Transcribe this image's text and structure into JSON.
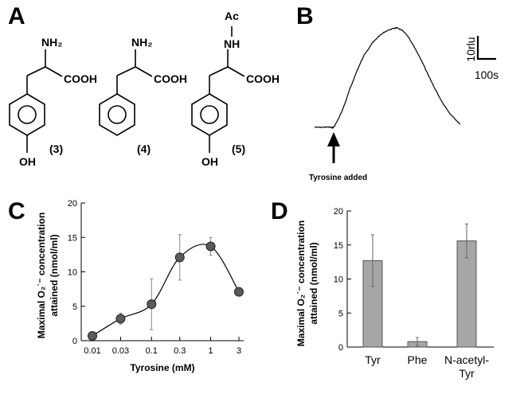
{
  "panels": [
    "A",
    "B",
    "C",
    "D"
  ],
  "panel_a": {
    "structures": [
      {
        "label": "(3)",
        "amine": "NH₂",
        "acid": "COOH",
        "ring_sub": "OH"
      },
      {
        "label": "(4)",
        "amine": "NH₂",
        "acid": "COOH",
        "ring_sub": ""
      },
      {
        "label": "(5)",
        "amine": "NH",
        "acyl": "Ac",
        "acid": "COOH",
        "ring_sub": "OH"
      }
    ]
  },
  "panel_b": {
    "scale_y": "10rlu",
    "scale_x": "100s",
    "annotation": "Tyrosine added",
    "trace": [
      [
        0,
        0.0
      ],
      [
        20,
        0.05
      ],
      [
        40,
        0.1
      ],
      [
        50,
        -0.1
      ],
      [
        55,
        0.2
      ],
      [
        70,
        4
      ],
      [
        85,
        9
      ],
      [
        100,
        15
      ],
      [
        120,
        22
      ],
      [
        140,
        28
      ],
      [
        160,
        32
      ],
      [
        180,
        35
      ],
      [
        200,
        37
      ],
      [
        220,
        38
      ],
      [
        230,
        38.3
      ],
      [
        245,
        37.5
      ],
      [
        260,
        35.5
      ],
      [
        280,
        31
      ],
      [
        300,
        26
      ],
      [
        320,
        20
      ],
      [
        340,
        14.5
      ],
      [
        360,
        9.5
      ],
      [
        380,
        5.5
      ],
      [
        400,
        2.5
      ],
      [
        410,
        1.2
      ]
    ]
  },
  "chart_data": [
    {
      "type": "scatter",
      "title": "",
      "xlabel": "Tyrosine (mM)",
      "ylabel": "Maximal O₂˙⁻ concentration attained (nmol/ml)",
      "x_scale": "log",
      "x_ticks": [
        "0.01",
        "0.03",
        "0.1",
        "0.3",
        "1",
        "3"
      ],
      "y_ticks": [
        "0",
        "5",
        "10",
        "15",
        "20"
      ],
      "ylim": [
        0,
        20
      ],
      "grid": false,
      "points": [
        {
          "x": 0.01,
          "y": 0.7,
          "err": 0.4
        },
        {
          "x": 0.03,
          "y": 3.2,
          "err": 0.8
        },
        {
          "x": 0.1,
          "y": 5.3,
          "err": 3.7
        },
        {
          "x": 0.3,
          "y": 12.1,
          "err": 3.3
        },
        {
          "x": 1,
          "y": 13.7,
          "err": 1.3
        },
        {
          "x": 3,
          "y": 7.1,
          "err": 0.4
        }
      ]
    },
    {
      "type": "bar",
      "title": "",
      "xlabel": "",
      "ylabel": "Maximal O₂˙⁻ concentration attained (nmol/ml)",
      "categories": [
        "Tyr",
        "Phe",
        "N-acetyl-Tyr"
      ],
      "values": [
        12.7,
        0.8,
        15.6
      ],
      "errors": [
        3.8,
        0.6,
        2.5
      ],
      "y_ticks": [
        "0",
        "5",
        "10",
        "15",
        "20"
      ],
      "ylim": [
        0,
        20
      ],
      "grid": false,
      "bar_color": "#a6a6a6"
    }
  ]
}
